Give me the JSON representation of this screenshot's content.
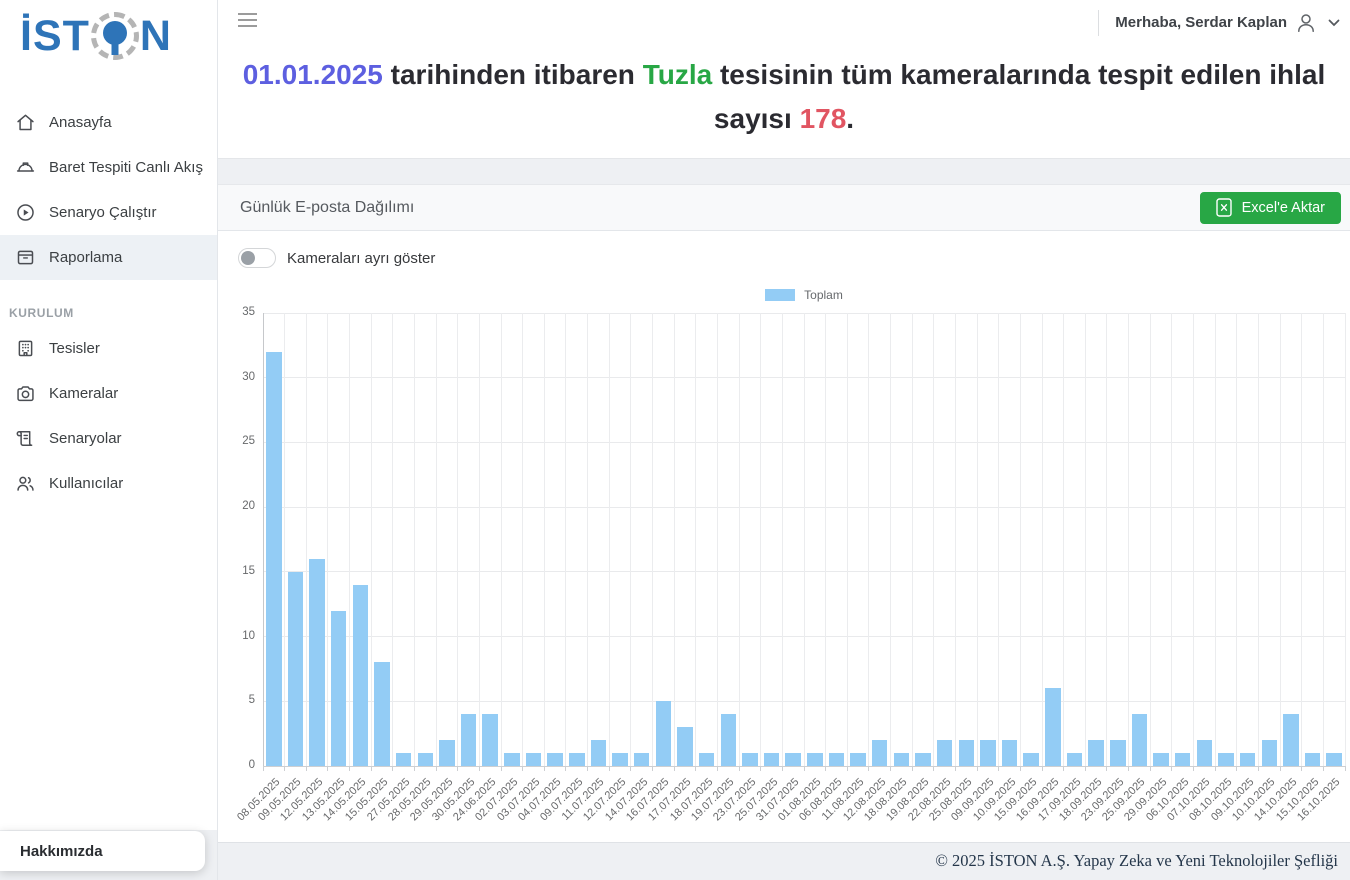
{
  "sidebar": {
    "logo": {
      "text_left": "İST",
      "text_right": "N",
      "brand_blue": "#2e74b8",
      "ring_gray": "#b5b5b5"
    },
    "items": [
      {
        "label": "Anasayfa",
        "icon": "home",
        "active": false
      },
      {
        "label": "Baret Tespiti Canlı Akış",
        "icon": "hard-hat",
        "active": false
      },
      {
        "label": "Senaryo Çalıştır",
        "icon": "play-circle",
        "active": false
      },
      {
        "label": "Raporlama",
        "icon": "archive-box",
        "active": true
      }
    ],
    "section_label": "KURULUM",
    "section_items": [
      {
        "label": "Tesisler",
        "icon": "building"
      },
      {
        "label": "Kameralar",
        "icon": "camera"
      },
      {
        "label": "Senaryolar",
        "icon": "scroll"
      },
      {
        "label": "Kullanıcılar",
        "icon": "users"
      }
    ],
    "about_label": "Hakkımızda"
  },
  "topbar": {
    "greeting": "Merhaba, Serdar Kaplan"
  },
  "headline": {
    "segments": [
      {
        "text": "01.01.2025",
        "color": "#5d5fe0"
      },
      {
        "text": " tarihinden itibaren ",
        "color": "#2b2b31"
      },
      {
        "text": "Tuzla",
        "color": "#28a745"
      },
      {
        "text": " tesisinin tüm kameralarında tespit edilen ihlal sayısı ",
        "color": "#2b2b31"
      },
      {
        "text": "178",
        "color": "#e15562"
      },
      {
        "text": ".",
        "color": "#2b2b31"
      }
    ]
  },
  "panel": {
    "title": "Günlük E-posta Dağılımı",
    "export_button": "Excel'e Aktar",
    "toggle_label": "Kameraları ayrı göster",
    "toggle_on": false
  },
  "chart_data": {
    "type": "bar",
    "title": "",
    "legend": [
      "Toplam"
    ],
    "legend_position": "top",
    "bar_color": "#93ccf5",
    "grid": true,
    "ylim": [
      0,
      35
    ],
    "ytick_step": 5,
    "categories": [
      "08.05.2025",
      "09.05.2025",
      "12.05.2025",
      "13.05.2025",
      "14.05.2025",
      "15.05.2025",
      "27.05.2025",
      "28.05.2025",
      "29.05.2025",
      "30.05.2025",
      "24.06.2025",
      "02.07.2025",
      "03.07.2025",
      "04.07.2025",
      "09.07.2025",
      "11.07.2025",
      "12.07.2025",
      "14.07.2025",
      "16.07.2025",
      "17.07.2025",
      "18.07.2025",
      "19.07.2025",
      "23.07.2025",
      "25.07.2025",
      "31.07.2025",
      "01.08.2025",
      "06.08.2025",
      "11.08.2025",
      "12.08.2025",
      "18.08.2025",
      "19.08.2025",
      "22.08.2025",
      "25.08.2025",
      "09.09.2025",
      "10.09.2025",
      "15.09.2025",
      "16.09.2025",
      "17.09.2025",
      "18.09.2025",
      "23.09.2025",
      "25.09.2025",
      "29.09.2025",
      "06.10.2025",
      "07.10.2025",
      "08.10.2025",
      "09.10.2025",
      "10.10.2025",
      "14.10.2025",
      "15.10.2025",
      "16.10.2025"
    ],
    "series": [
      {
        "name": "Toplam",
        "values": [
          32,
          15,
          16,
          12,
          14,
          8,
          1,
          1,
          2,
          4,
          4,
          1,
          1,
          1,
          1,
          2,
          1,
          1,
          5,
          3,
          1,
          4,
          1,
          1,
          1,
          1,
          1,
          1,
          2,
          1,
          1,
          2,
          2,
          2,
          2,
          1,
          6,
          1,
          2,
          2,
          4,
          1,
          1,
          2,
          1,
          1,
          2,
          4,
          1,
          1
        ]
      }
    ],
    "total": 178
  },
  "footer": {
    "copyright": "© 2025 İSTON A.Ş. Yapay Zeka ve Yeni Teknolojiler Şefliği"
  }
}
